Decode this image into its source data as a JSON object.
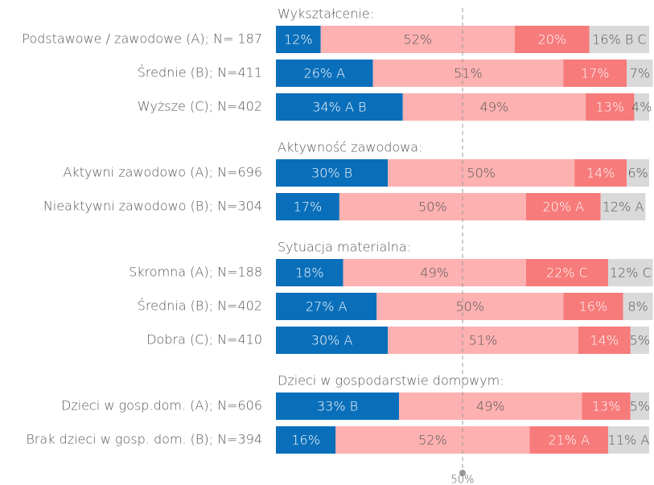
{
  "chart_data": [
    {
      "type": "bar",
      "orientation": "horizontal",
      "stacked": true,
      "title": "Wykształcenie:",
      "xlim": [
        0,
        100
      ],
      "categories": [
        "Podstawowe / zawodowe (A); N= 187",
        "Średnie (B); N=411",
        "Wyższe (C); N=402"
      ],
      "series": [
        {
          "color": "#0a6fba",
          "values": [
            12,
            26,
            34
          ],
          "value_labels": [
            "12%",
            "26% A",
            "34% A B"
          ]
        },
        {
          "color": "#fdb1b1",
          "values": [
            52,
            51,
            49
          ],
          "value_labels": [
            "52%",
            "51%",
            "49%"
          ]
        },
        {
          "color": "#f77b7b",
          "values": [
            20,
            17,
            13
          ],
          "value_labels": [
            "20%",
            "17%",
            "13%"
          ]
        },
        {
          "color": "#d9d9d9",
          "values": [
            16,
            7,
            4
          ],
          "value_labels": [
            "16% B C",
            "7%",
            "4%"
          ]
        }
      ]
    },
    {
      "type": "bar",
      "orientation": "horizontal",
      "stacked": true,
      "title": "Aktywność zawodowa:",
      "xlim": [
        0,
        100
      ],
      "categories": [
        "Aktywni zawodowo (A); N=696",
        "Nieaktywni zawodowo (B); N=304"
      ],
      "series": [
        {
          "color": "#0a6fba",
          "values": [
            30,
            17
          ],
          "value_labels": [
            "30% B",
            "17%"
          ]
        },
        {
          "color": "#fdb1b1",
          "values": [
            50,
            50
          ],
          "value_labels": [
            "50%",
            "50%"
          ]
        },
        {
          "color": "#f77b7b",
          "values": [
            14,
            20
          ],
          "value_labels": [
            "14%",
            "20% A"
          ]
        },
        {
          "color": "#d9d9d9",
          "values": [
            6,
            12
          ],
          "value_labels": [
            "6%",
            "12% A"
          ]
        }
      ]
    },
    {
      "type": "bar",
      "orientation": "horizontal",
      "stacked": true,
      "title": "Sytuacja materialna:",
      "xlim": [
        0,
        100
      ],
      "categories": [
        "Skromna (A); N=188",
        "Średnia (B); N=402",
        "Dobra (C); N=410"
      ],
      "series": [
        {
          "color": "#0a6fba",
          "values": [
            18,
            27,
            30
          ],
          "value_labels": [
            "18%",
            "27% A",
            "30% A"
          ]
        },
        {
          "color": "#fdb1b1",
          "values": [
            49,
            50,
            51
          ],
          "value_labels": [
            "49%",
            "50%",
            "51%"
          ]
        },
        {
          "color": "#f77b7b",
          "values": [
            22,
            16,
            14
          ],
          "value_labels": [
            "22% C",
            "16%",
            "14%"
          ]
        },
        {
          "color": "#d9d9d9",
          "values": [
            12,
            8,
            5
          ],
          "value_labels": [
            "12% C",
            "8%",
            "5%"
          ]
        }
      ]
    },
    {
      "type": "bar",
      "orientation": "horizontal",
      "stacked": true,
      "title": "Dzieci w gospodarstwie domowym:",
      "xlim": [
        0,
        100
      ],
      "categories": [
        "Dzieci w gosp.dom. (A); N=606",
        "Brak dzieci w gosp. dom. (B); N=394"
      ],
      "series": [
        {
          "color": "#0a6fba",
          "values": [
            33,
            16
          ],
          "value_labels": [
            "33% B",
            "16%"
          ]
        },
        {
          "color": "#fdb1b1",
          "values": [
            49,
            52
          ],
          "value_labels": [
            "49%",
            "52%"
          ]
        },
        {
          "color": "#f77b7b",
          "values": [
            13,
            21
          ],
          "value_labels": [
            "13%",
            "21% A"
          ]
        },
        {
          "color": "#d9d9d9",
          "values": [
            5,
            11
          ],
          "value_labels": [
            "5%",
            "11% A"
          ]
        }
      ],
      "reference_line": {
        "value": 50,
        "label": "50%"
      }
    }
  ]
}
